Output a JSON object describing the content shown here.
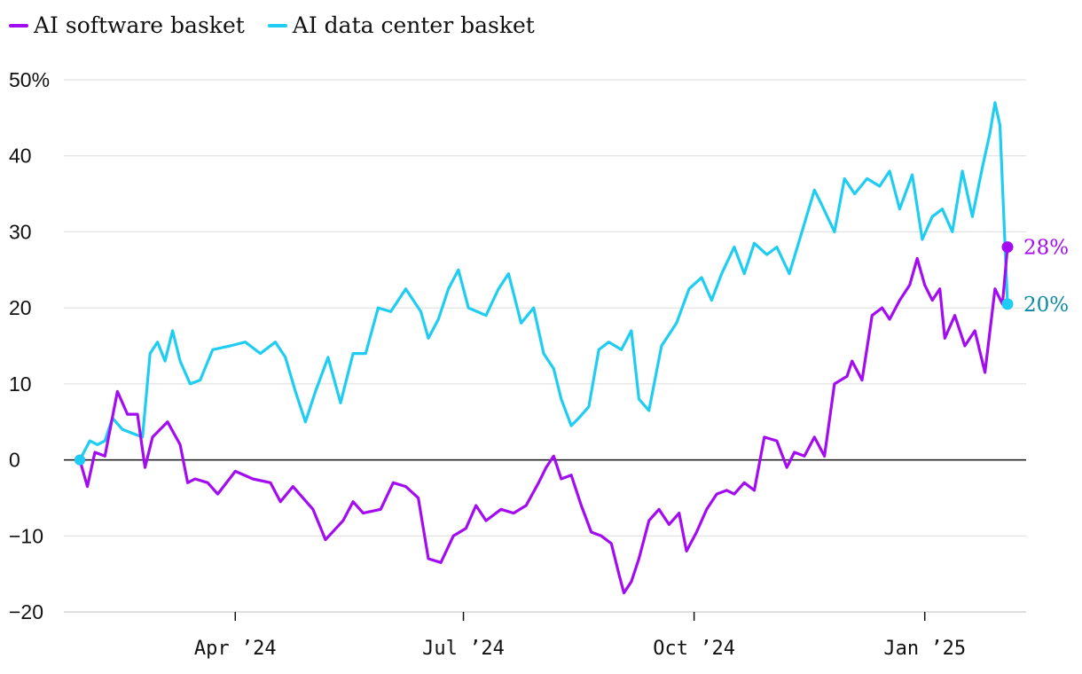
{
  "legend": {
    "items": [
      {
        "label": "AI software basket",
        "color": "#a30cf0"
      },
      {
        "label": "AI data center basket",
        "color": "#1fcdf3"
      }
    ]
  },
  "end_labels": {
    "software": "28%",
    "datacenter": "20%",
    "software_color": "#a30cf0",
    "datacenter_color": "#0a8aa8"
  },
  "chart_data": {
    "type": "line",
    "x_range": [
      "2024-01-30",
      "2025-02-03"
    ],
    "ylim": [
      -20,
      50
    ],
    "yticks": [
      -20,
      -10,
      0,
      10,
      20,
      30,
      40,
      50
    ],
    "ytick_labels": [
      "−20",
      "−10",
      "0",
      "10",
      "20",
      "30",
      "40",
      "50%"
    ],
    "xticks": [
      "2024-04-01",
      "2024-07-01",
      "2024-10-01",
      "2025-01-01"
    ],
    "xtick_labels": [
      "Apr ’24",
      "Jul ’24",
      "Oct ’24",
      "Jan ’25"
    ],
    "grid": true,
    "zero_line": true,
    "series": [
      {
        "name": "AI software basket",
        "color": "#a30cf0",
        "points": [
          [
            "2024-01-30",
            0
          ],
          [
            "2024-02-02",
            -3.5
          ],
          [
            "2024-02-05",
            1
          ],
          [
            "2024-02-09",
            0.5
          ],
          [
            "2024-02-14",
            9
          ],
          [
            "2024-02-18",
            6
          ],
          [
            "2024-02-22",
            6
          ],
          [
            "2024-02-25",
            -1
          ],
          [
            "2024-02-28",
            3
          ],
          [
            "2024-03-02",
            4
          ],
          [
            "2024-03-05",
            5
          ],
          [
            "2024-03-10",
            2
          ],
          [
            "2024-03-13",
            -3
          ],
          [
            "2024-03-16",
            -2.5
          ],
          [
            "2024-03-21",
            -3
          ],
          [
            "2024-03-25",
            -4.5
          ],
          [
            "2024-04-01",
            -1.5
          ],
          [
            "2024-04-08",
            -2.5
          ],
          [
            "2024-04-15",
            -3
          ],
          [
            "2024-04-19",
            -5.5
          ],
          [
            "2024-04-24",
            -3.5
          ],
          [
            "2024-04-28",
            -5
          ],
          [
            "2024-05-02",
            -6.5
          ],
          [
            "2024-05-07",
            -10.5
          ],
          [
            "2024-05-14",
            -8
          ],
          [
            "2024-05-18",
            -5.5
          ],
          [
            "2024-05-22",
            -7
          ],
          [
            "2024-05-29",
            -6.5
          ],
          [
            "2024-06-03",
            -3
          ],
          [
            "2024-06-08",
            -3.5
          ],
          [
            "2024-06-13",
            -5
          ],
          [
            "2024-06-17",
            -13
          ],
          [
            "2024-06-22",
            -13.5
          ],
          [
            "2024-06-27",
            -10
          ],
          [
            "2024-07-02",
            -9
          ],
          [
            "2024-07-06",
            -6
          ],
          [
            "2024-07-10",
            -8
          ],
          [
            "2024-07-16",
            -6.5
          ],
          [
            "2024-07-21",
            -7
          ],
          [
            "2024-07-26",
            -6
          ],
          [
            "2024-07-31",
            -3
          ],
          [
            "2024-08-03",
            -1
          ],
          [
            "2024-08-06",
            0.5
          ],
          [
            "2024-08-09",
            -2.5
          ],
          [
            "2024-08-13",
            -2
          ],
          [
            "2024-08-17",
            -6
          ],
          [
            "2024-08-21",
            -9.5
          ],
          [
            "2024-08-25",
            -10
          ],
          [
            "2024-08-29",
            -11
          ],
          [
            "2024-09-01",
            -15
          ],
          [
            "2024-09-03",
            -17.5
          ],
          [
            "2024-09-06",
            -16
          ],
          [
            "2024-09-09",
            -13
          ],
          [
            "2024-09-13",
            -8
          ],
          [
            "2024-09-17",
            -6.5
          ],
          [
            "2024-09-21",
            -8.5
          ],
          [
            "2024-09-25",
            -7
          ],
          [
            "2024-09-28",
            -12
          ],
          [
            "2024-10-02",
            -9.5
          ],
          [
            "2024-10-06",
            -6.5
          ],
          [
            "2024-10-10",
            -4.5
          ],
          [
            "2024-10-14",
            -4
          ],
          [
            "2024-10-17",
            -4.5
          ],
          [
            "2024-10-21",
            -3
          ],
          [
            "2024-10-25",
            -4
          ],
          [
            "2024-10-29",
            3
          ],
          [
            "2024-11-03",
            2.5
          ],
          [
            "2024-11-07",
            -1
          ],
          [
            "2024-11-10",
            1
          ],
          [
            "2024-11-14",
            0.5
          ],
          [
            "2024-11-18",
            3
          ],
          [
            "2024-11-22",
            0.5
          ],
          [
            "2024-11-26",
            10
          ],
          [
            "2024-12-01",
            11
          ],
          [
            "2024-12-03",
            13
          ],
          [
            "2024-12-07",
            10.5
          ],
          [
            "2024-12-11",
            19
          ],
          [
            "2024-12-15",
            20
          ],
          [
            "2024-12-18",
            18.5
          ],
          [
            "2024-12-22",
            21
          ],
          [
            "2024-12-26",
            23
          ],
          [
            "2024-12-29",
            26.5
          ],
          [
            "2025-01-01",
            23
          ],
          [
            "2025-01-04",
            21
          ],
          [
            "2025-01-07",
            22.5
          ],
          [
            "2025-01-09",
            16
          ],
          [
            "2025-01-13",
            19
          ],
          [
            "2025-01-17",
            15
          ],
          [
            "2025-01-21",
            17
          ],
          [
            "2025-01-25",
            11.5
          ],
          [
            "2025-01-29",
            22.5
          ],
          [
            "2025-02-01",
            20.5
          ],
          [
            "2025-02-03",
            28
          ]
        ]
      },
      {
        "name": "AI data center basket",
        "color": "#1fcdf3",
        "points": [
          [
            "2024-01-30",
            0
          ],
          [
            "2024-02-03",
            2.5
          ],
          [
            "2024-02-06",
            2
          ],
          [
            "2024-02-09",
            2.5
          ],
          [
            "2024-02-12",
            5.5
          ],
          [
            "2024-02-16",
            4
          ],
          [
            "2024-02-20",
            3.5
          ],
          [
            "2024-02-24",
            3
          ],
          [
            "2024-02-27",
            14
          ],
          [
            "2024-03-01",
            15.5
          ],
          [
            "2024-03-04",
            13
          ],
          [
            "2024-03-07",
            17
          ],
          [
            "2024-03-10",
            13
          ],
          [
            "2024-03-14",
            10
          ],
          [
            "2024-03-18",
            10.5
          ],
          [
            "2024-03-23",
            14.5
          ],
          [
            "2024-03-30",
            15
          ],
          [
            "2024-04-05",
            15.5
          ],
          [
            "2024-04-11",
            14
          ],
          [
            "2024-04-17",
            15.5
          ],
          [
            "2024-04-21",
            13.5
          ],
          [
            "2024-04-25",
            9
          ],
          [
            "2024-04-29",
            5
          ],
          [
            "2024-05-03",
            9
          ],
          [
            "2024-05-08",
            13.5
          ],
          [
            "2024-05-13",
            7.5
          ],
          [
            "2024-05-18",
            14
          ],
          [
            "2024-05-23",
            14
          ],
          [
            "2024-05-28",
            20
          ],
          [
            "2024-06-02",
            19.5
          ],
          [
            "2024-06-08",
            22.5
          ],
          [
            "2024-06-14",
            19.5
          ],
          [
            "2024-06-17",
            16
          ],
          [
            "2024-06-21",
            18.5
          ],
          [
            "2024-06-25",
            22.5
          ],
          [
            "2024-06-29",
            25
          ],
          [
            "2024-07-03",
            20
          ],
          [
            "2024-07-10",
            19
          ],
          [
            "2024-07-15",
            22.5
          ],
          [
            "2024-07-19",
            24.5
          ],
          [
            "2024-07-24",
            18
          ],
          [
            "2024-07-29",
            20
          ],
          [
            "2024-08-02",
            14
          ],
          [
            "2024-08-06",
            12
          ],
          [
            "2024-08-09",
            8
          ],
          [
            "2024-08-13",
            4.5
          ],
          [
            "2024-08-16",
            5.5
          ],
          [
            "2024-08-20",
            7
          ],
          [
            "2024-08-24",
            14.5
          ],
          [
            "2024-08-28",
            15.5
          ],
          [
            "2024-09-02",
            14.5
          ],
          [
            "2024-09-06",
            17
          ],
          [
            "2024-09-09",
            8
          ],
          [
            "2024-09-13",
            6.5
          ],
          [
            "2024-09-18",
            15
          ],
          [
            "2024-09-24",
            18
          ],
          [
            "2024-09-29",
            22.5
          ],
          [
            "2024-10-04",
            24
          ],
          [
            "2024-10-08",
            21
          ],
          [
            "2024-10-12",
            24.5
          ],
          [
            "2024-10-17",
            28
          ],
          [
            "2024-10-21",
            24.5
          ],
          [
            "2024-10-25",
            28.5
          ],
          [
            "2024-10-30",
            27
          ],
          [
            "2024-11-03",
            28
          ],
          [
            "2024-11-08",
            24.5
          ],
          [
            "2024-11-13",
            30
          ],
          [
            "2024-11-18",
            35.5
          ],
          [
            "2024-11-21",
            33.5
          ],
          [
            "2024-11-26",
            30
          ],
          [
            "2024-11-30",
            37
          ],
          [
            "2024-12-04",
            35
          ],
          [
            "2024-12-09",
            37
          ],
          [
            "2024-12-14",
            36
          ],
          [
            "2024-12-18",
            38
          ],
          [
            "2024-12-22",
            33
          ],
          [
            "2024-12-27",
            37.5
          ],
          [
            "2024-12-31",
            29
          ],
          [
            "2025-01-04",
            32
          ],
          [
            "2025-01-08",
            33
          ],
          [
            "2025-01-12",
            30
          ],
          [
            "2025-01-16",
            38
          ],
          [
            "2025-01-20",
            32
          ],
          [
            "2025-01-24",
            38.5
          ],
          [
            "2025-01-27",
            43
          ],
          [
            "2025-01-29",
            47
          ],
          [
            "2025-01-31",
            44
          ],
          [
            "2025-02-03",
            20.5
          ]
        ]
      }
    ]
  }
}
